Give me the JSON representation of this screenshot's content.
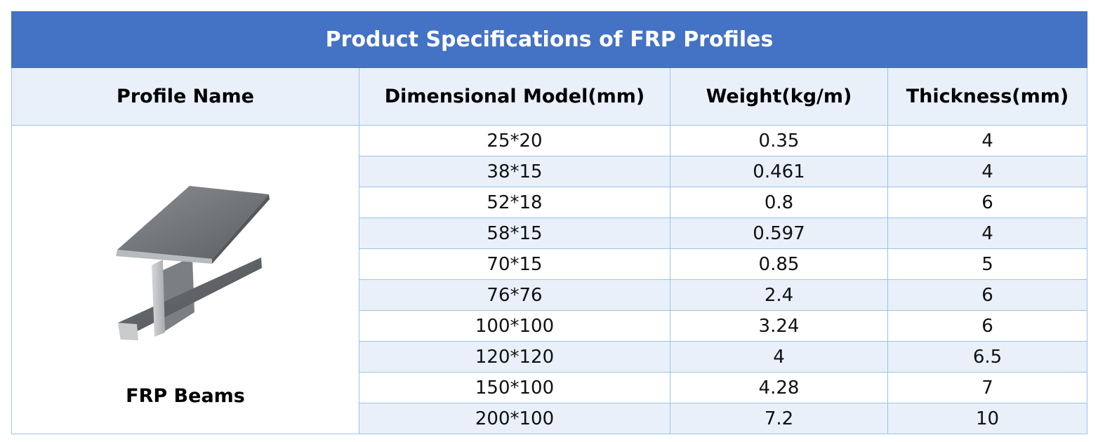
{
  "title": "Product Specifications of FRP Profiles",
  "columns": [
    "Profile Name",
    "Dimensional Model(mm)",
    "Weight(kg/m)",
    "Thickness(mm)"
  ],
  "profile": {
    "name": "FRP Beams",
    "image": "frp-i-beam-image"
  },
  "rows": [
    [
      "25*20",
      "0.35",
      "4"
    ],
    [
      "38*15",
      "0.461",
      "4"
    ],
    [
      "52*18",
      "0.8",
      "6"
    ],
    [
      "58*15",
      "0.597",
      "4"
    ],
    [
      "70*15",
      "0.85",
      "5"
    ],
    [
      "76*76",
      "2.4",
      "6"
    ],
    [
      "100*100",
      "3.24",
      "6"
    ],
    [
      "120*120",
      "4",
      "6.5"
    ],
    [
      "150*100",
      "4.28",
      "7"
    ],
    [
      "200*100",
      "7.2",
      "10"
    ]
  ],
  "colors": {
    "title_bg": "#4472c4",
    "header_bg": "#e9f0fa",
    "stripe_bg": "#e9f0fa",
    "border": "#9dc3e6"
  }
}
